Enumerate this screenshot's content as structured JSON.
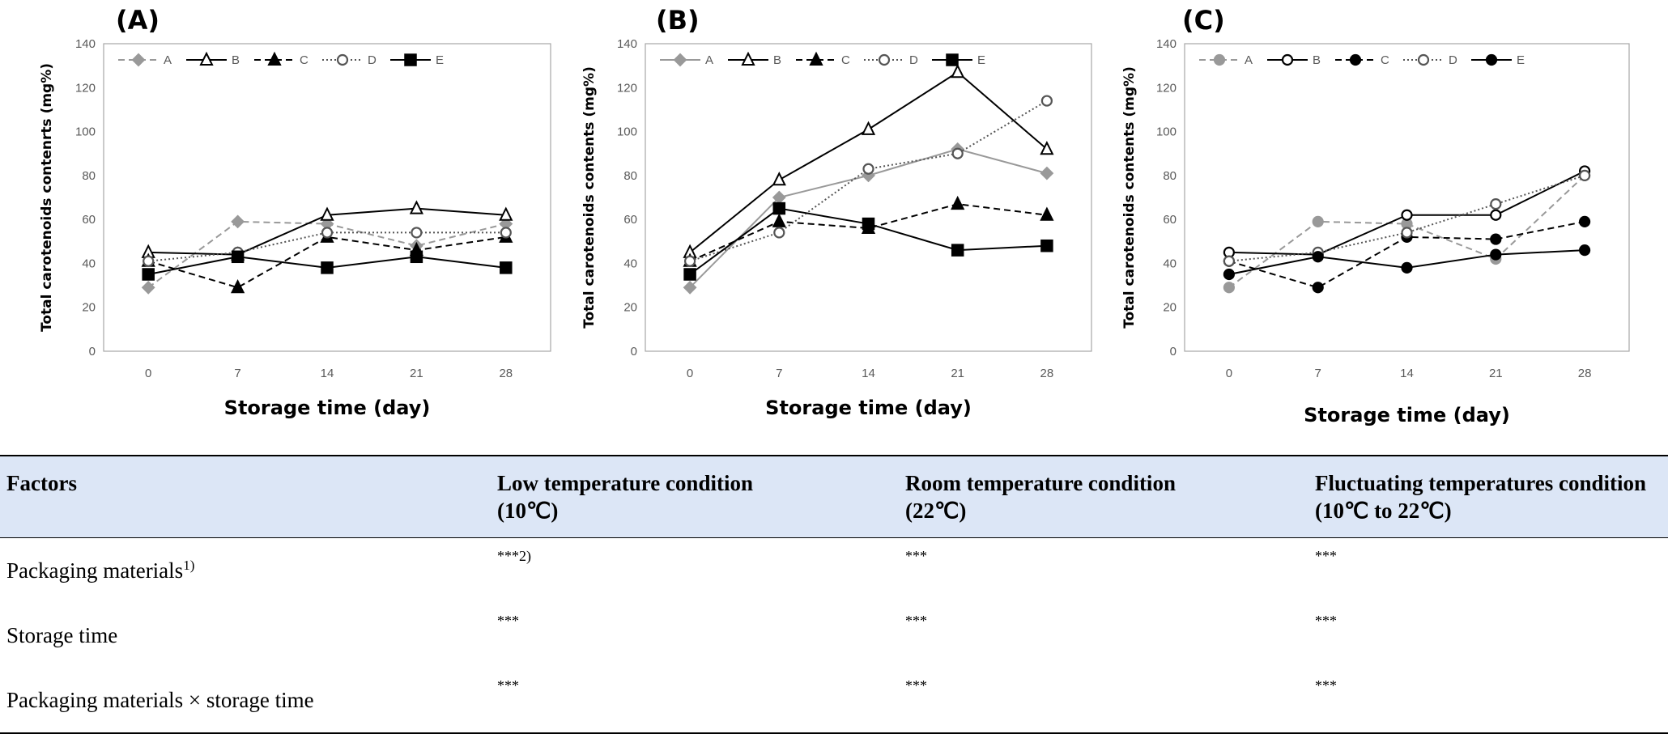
{
  "chart_data": [
    {
      "type": "line",
      "panel": "(A)",
      "categories": [
        "0",
        "7",
        "14",
        "21",
        "28"
      ],
      "ylabel": "Total carotenoids contenrts (mg%)",
      "xlabel": "Storage time (day)",
      "ylim": [
        0,
        140
      ],
      "yticks": [
        0,
        20,
        40,
        60,
        80,
        100,
        120,
        140
      ],
      "legend_position": "top-left",
      "series": [
        {
          "name": "A",
          "values": [
            29,
            59,
            58,
            48,
            58
          ],
          "color": "#999999",
          "dash": "dashed",
          "marker": "diamond-filled"
        },
        {
          "name": "B",
          "values": [
            45,
            44,
            62,
            65,
            62
          ],
          "color": "#000000",
          "dash": "solid",
          "marker": "triangle-open"
        },
        {
          "name": "C",
          "values": [
            41,
            29,
            52,
            46,
            52
          ],
          "color": "#000000",
          "dash": "dashed",
          "marker": "triangle-filled"
        },
        {
          "name": "D",
          "values": [
            41,
            45,
            54,
            54,
            54
          ],
          "color": "#555555",
          "dash": "dotted",
          "marker": "circle-open"
        },
        {
          "name": "E",
          "values": [
            35,
            43,
            38,
            43,
            38
          ],
          "color": "#000000",
          "dash": "solid",
          "marker": "square-filled"
        }
      ]
    },
    {
      "type": "line",
      "panel": "(B)",
      "categories": [
        "0",
        "7",
        "14",
        "21",
        "28"
      ],
      "ylabel": "Total carotenoids contents (mg%)",
      "xlabel": "Storage time (day)",
      "ylim": [
        0,
        140
      ],
      "yticks": [
        0,
        20,
        40,
        60,
        80,
        100,
        120,
        140
      ],
      "legend_position": "top-left",
      "series": [
        {
          "name": "A",
          "values": [
            29,
            70,
            80,
            92,
            81
          ],
          "color": "#999999",
          "dash": "solid",
          "marker": "diamond-filled"
        },
        {
          "name": "B",
          "values": [
            45,
            78,
            101,
            127,
            92
          ],
          "color": "#000000",
          "dash": "solid",
          "marker": "triangle-open"
        },
        {
          "name": "C",
          "values": [
            41,
            59,
            56,
            67,
            62
          ],
          "color": "#000000",
          "dash": "dashed",
          "marker": "triangle-filled"
        },
        {
          "name": "D",
          "values": [
            41,
            54,
            83,
            90,
            114
          ],
          "color": "#555555",
          "dash": "dotted",
          "marker": "circle-open"
        },
        {
          "name": "E",
          "values": [
            35,
            65,
            58,
            46,
            48
          ],
          "color": "#000000",
          "dash": "solid",
          "marker": "square-filled"
        }
      ]
    },
    {
      "type": "line",
      "panel": "(C)",
      "categories": [
        "0",
        "7",
        "14",
        "21",
        "28"
      ],
      "ylabel": "Total carotenoids contents (mg%)",
      "xlabel": "Storage time (day)",
      "ylim": [
        0,
        140
      ],
      "yticks": [
        0,
        20,
        40,
        60,
        80,
        100,
        120,
        140
      ],
      "legend_position": "top-left",
      "series": [
        {
          "name": "A",
          "values": [
            29,
            59,
            58,
            42,
            80
          ],
          "color": "#999999",
          "dash": "dashed",
          "marker": "circle-filled"
        },
        {
          "name": "B",
          "values": [
            45,
            44,
            62,
            62,
            82
          ],
          "color": "#000000",
          "dash": "solid",
          "marker": "circle-open"
        },
        {
          "name": "C",
          "values": [
            41,
            29,
            52,
            51,
            59
          ],
          "color": "#000000",
          "dash": "dashed",
          "marker": "circle-filled"
        },
        {
          "name": "D",
          "values": [
            41,
            45,
            54,
            67,
            80
          ],
          "color": "#555555",
          "dash": "dotted",
          "marker": "circle-open"
        },
        {
          "name": "E",
          "values": [
            35,
            43,
            38,
            44,
            46
          ],
          "color": "#000000",
          "dash": "solid",
          "marker": "circle-filled"
        }
      ]
    }
  ],
  "table": {
    "headers": [
      {
        "line1": "Factors",
        "line2": ""
      },
      {
        "line1": "Low temperature condition",
        "line2": "(10℃)"
      },
      {
        "line1": "Room temperature condition",
        "line2": "(22℃)"
      },
      {
        "line1": "Fluctuating temperatures condition",
        "line2": "(10℃ to 22℃)"
      }
    ],
    "rows": [
      {
        "factor": "Packaging materials",
        "factor_sup": "1)",
        "low": "***2)",
        "room": "***",
        "fluct": "***"
      },
      {
        "factor": "Storage time",
        "factor_sup": "",
        "low": "***",
        "room": "***",
        "fluct": "***"
      },
      {
        "factor": "Packaging materials × storage time",
        "factor_sup": "",
        "low": "***",
        "room": "***",
        "fluct": "***"
      }
    ]
  }
}
